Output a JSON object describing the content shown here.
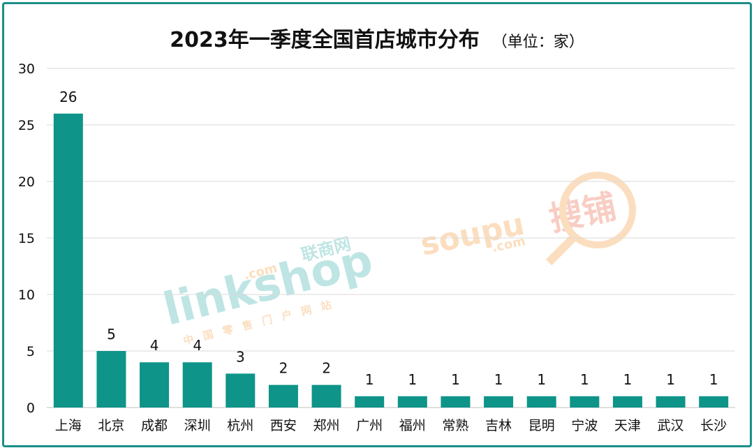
{
  "title": "2023年一季度全国首店城市分布",
  "unit": "（单位：家）",
  "watermarks": {
    "linkshop_logo": "linkshop",
    "linkshop_com": ".com",
    "linkshop_cn": "联商网",
    "linkshop_sub": "中国零售门户网站",
    "soupu_logo": "soupu",
    "soupu_com": ".com",
    "soupu_cn": "搜铺"
  },
  "colors": {
    "bar": "#0e9488",
    "frame": "#1a8f88",
    "grid": "#d9d9d9"
  },
  "chart_data": {
    "type": "bar",
    "title": "2023年一季度全国首店城市分布",
    "subtitle": "（单位：家）",
    "categories": [
      "上海",
      "北京",
      "成都",
      "深圳",
      "杭州",
      "西安",
      "郑州",
      "广州",
      "福州",
      "常熟",
      "吉林",
      "昆明",
      "宁波",
      "天津",
      "武汉",
      "长沙"
    ],
    "values": [
      26,
      5,
      4,
      4,
      3,
      2,
      2,
      1,
      1,
      1,
      1,
      1,
      1,
      1,
      1,
      1
    ],
    "ylim": [
      0,
      30
    ],
    "yticks": [
      0,
      5,
      10,
      15,
      20,
      25,
      30
    ],
    "grid": true,
    "data_labels": true,
    "legend": "none"
  }
}
